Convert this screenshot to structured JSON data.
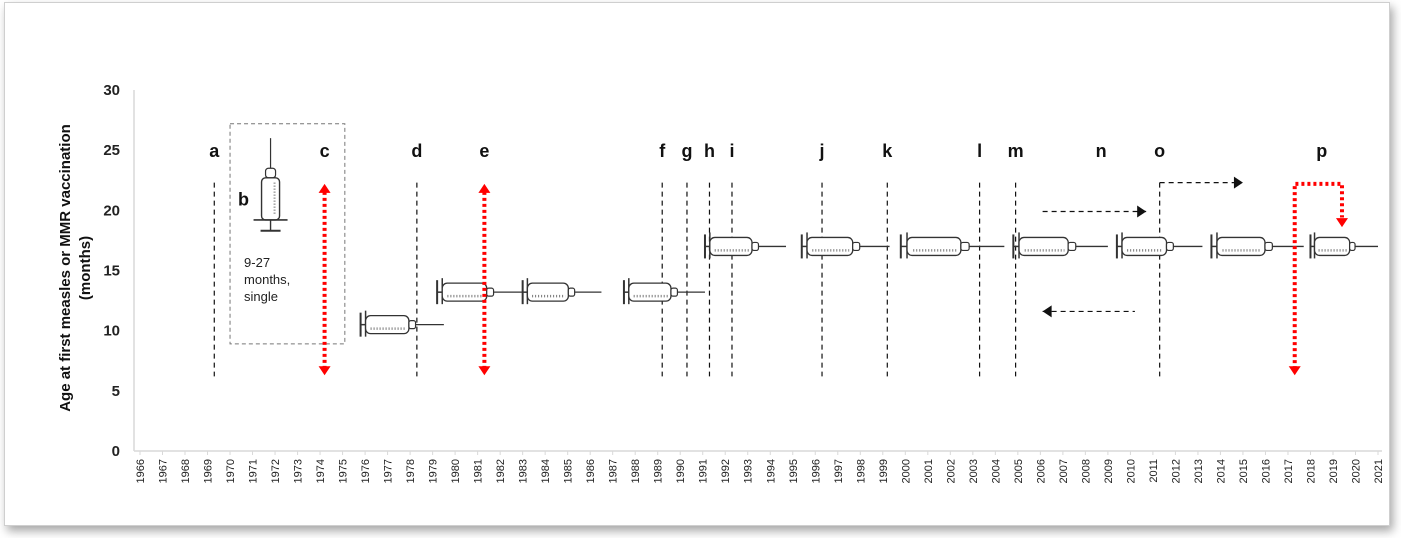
{
  "chart_data": {
    "type": "timeline",
    "ylabel_line1": "Age at first measles or MMR vaccination",
    "ylabel_line2": "(months)",
    "ylim": [
      0,
      30
    ],
    "y_ticks": [
      0,
      5,
      10,
      15,
      20,
      25,
      30
    ],
    "x_categories": [
      "1966",
      "1967",
      "1968",
      "1969",
      "1970",
      "1971",
      "1972",
      "1973",
      "1974",
      "1975",
      "1976",
      "1977",
      "1978",
      "1979",
      "1980",
      "1981",
      "1982",
      "1983",
      "1984",
      "1985",
      "1986",
      "1987",
      "1988",
      "1989",
      "1990",
      "1991",
      "1992",
      "1993",
      "1994",
      "1995",
      "1996",
      "1997",
      "1998",
      "1999",
      "2000",
      "2001",
      "2002",
      "2003",
      "2004",
      "2005",
      "2006",
      "2007",
      "2008",
      "2009",
      "2010",
      "2011",
      "2012",
      "2013",
      "2014",
      "2015",
      "2016",
      "2017",
      "2018",
      "2019",
      "2020",
      "2021"
    ],
    "event_lines": [
      {
        "year": 1969.3,
        "label": "a"
      },
      {
        "year": 1978.3,
        "label": "d"
      },
      {
        "year": 1989.2,
        "label": "f"
      },
      {
        "year": 1990.3,
        "label": "g"
      },
      {
        "year": 1991.3,
        "label": "h"
      },
      {
        "year": 1992.3,
        "label": "i"
      },
      {
        "year": 1996.3,
        "label": "j"
      },
      {
        "year": 1999.2,
        "label": "k"
      },
      {
        "year": 2003.3,
        "label": "l"
      },
      {
        "year": 2004.9,
        "label": "m"
      },
      {
        "year": 2011.3,
        "label": "o"
      }
    ],
    "floating_labels": [
      {
        "year": 1974.2,
        "y": 25,
        "label": "c"
      },
      {
        "year": 1981.3,
        "y": 25,
        "label": "e"
      },
      {
        "year": 2008.7,
        "y": 25,
        "label": "n"
      },
      {
        "year": 2018.5,
        "y": 25,
        "label": "p"
      },
      {
        "year": 1970.6,
        "y": 21,
        "label": "b"
      }
    ],
    "box_note": [
      "9-27",
      "months,",
      "single"
    ],
    "syringe_intervals": [
      {
        "start": 1975.8,
        "end": 1979.5,
        "age_months": 10.5
      },
      {
        "start": 1979.2,
        "end": 1983.0,
        "age_months": 13.2
      },
      {
        "start": 1983.0,
        "end": 1986.5,
        "age_months": 13.2
      },
      {
        "start": 1987.5,
        "end": 1991.1,
        "age_months": 13.2
      },
      {
        "start": 1991.1,
        "end": 1994.7,
        "age_months": 17
      },
      {
        "start": 1995.4,
        "end": 1999.3,
        "age_months": 17
      },
      {
        "start": 1999.8,
        "end": 2004.4,
        "age_months": 17
      },
      {
        "start": 2004.8,
        "end": 2009.0,
        "age_months": 17
      },
      {
        "start": 2009.4,
        "end": 2013.2,
        "age_months": 17
      },
      {
        "start": 2013.6,
        "end": 2017.7,
        "age_months": 17
      },
      {
        "start": 2018.0,
        "end": 2021.0,
        "age_months": 17
      }
    ],
    "colors": {
      "axis": "#d9d9d9",
      "text": "#222222",
      "dashed": "#111111",
      "red": "#ff0000",
      "syringe": "#333333"
    }
  }
}
